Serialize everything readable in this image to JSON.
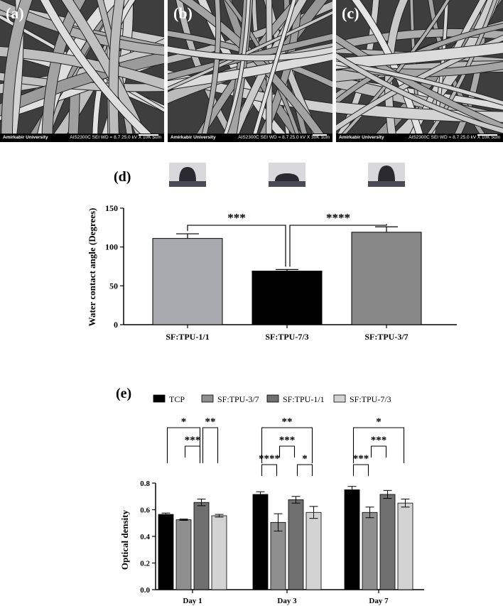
{
  "sem_panels": [
    {
      "label": "(a)",
      "institution": "Amirkabir University",
      "info": "AIS2300C   SEI   WD = 8.7   25.0 kV  X 10K     5um"
    },
    {
      "label": "(b)",
      "institution": "Amirkabir University",
      "info": "AIS2300C   SEI   WD = 8.7   25.0 kV  X 30K     1um"
    },
    {
      "label": "(c)",
      "institution": "Amirkabir University",
      "info": "AIS2300C   SEI   WD = 8.7   25.0 kV  X 10K     5um"
    }
  ],
  "chart_data": [
    {
      "type": "bar",
      "panel_label": "(d)",
      "ylabel": "Water contact angle (Degrees)",
      "ylim": [
        0,
        150
      ],
      "yticks": [
        0,
        50,
        100,
        150
      ],
      "categories": [
        "SF:TPU-1/1",
        "SF:TPU-7/3",
        "SF:TPU-3/7"
      ],
      "values": [
        111,
        69,
        119
      ],
      "errors": [
        6,
        2,
        7
      ],
      "colors": [
        "#a9a9b0",
        "#000000",
        "#878787"
      ],
      "significance": [
        {
          "from": 0,
          "to": 1,
          "label": "***"
        },
        {
          "from": 1,
          "to": 2,
          "label": "****"
        }
      ]
    },
    {
      "type": "bar",
      "panel_label": "(e)",
      "ylabel": "Optical density",
      "ylim": [
        0,
        0.8
      ],
      "yticks": [
        "0.0",
        "0.2",
        "0.4",
        "0.6",
        "0.8"
      ],
      "legend_position": "top",
      "categories": [
        "Day 1",
        "Day 3",
        "Day 7"
      ],
      "series": [
        {
          "name": "TCP",
          "color": "#000000",
          "values": [
            0.565,
            0.715,
            0.75
          ],
          "errors": [
            0.01,
            0.02,
            0.025
          ]
        },
        {
          "name": "SF:TPU-3/7",
          "color": "#8f8f8f",
          "values": [
            0.525,
            0.505,
            0.58
          ],
          "errors": [
            0.005,
            0.065,
            0.04
          ]
        },
        {
          "name": "SF:TPU-1/1",
          "color": "#6f6f6f",
          "values": [
            0.655,
            0.675,
            0.715
          ],
          "errors": [
            0.025,
            0.025,
            0.03
          ]
        },
        {
          "name": "SF:TPU-7/3",
          "color": "#d3d3d3",
          "values": [
            0.555,
            0.58,
            0.65
          ],
          "errors": [
            0.01,
            0.045,
            0.03
          ]
        }
      ],
      "significance": [
        {
          "group": 0,
          "from": 0,
          "to": 2,
          "level": 0,
          "label": "*"
        },
        {
          "group": 0,
          "from": 2,
          "to": 3,
          "level": 0,
          "label": "**"
        },
        {
          "group": 0,
          "from": 1,
          "to": 2,
          "level": 1,
          "label": "***"
        },
        {
          "group": 1,
          "from": 0,
          "to": 3,
          "level": 0,
          "label": "**"
        },
        {
          "group": 1,
          "from": 1,
          "to": 2,
          "level": 1,
          "label": "***"
        },
        {
          "group": 1,
          "from": 0,
          "to": 1,
          "level": 2,
          "label": "****"
        },
        {
          "group": 1,
          "from": 2,
          "to": 3,
          "level": 2,
          "label": "*"
        },
        {
          "group": 2,
          "from": 0,
          "to": 3,
          "level": 0,
          "label": "*"
        },
        {
          "group": 2,
          "from": 1,
          "to": 2,
          "level": 1,
          "label": "***"
        },
        {
          "group": 2,
          "from": 0,
          "to": 1,
          "level": 2,
          "label": "***"
        }
      ]
    }
  ]
}
